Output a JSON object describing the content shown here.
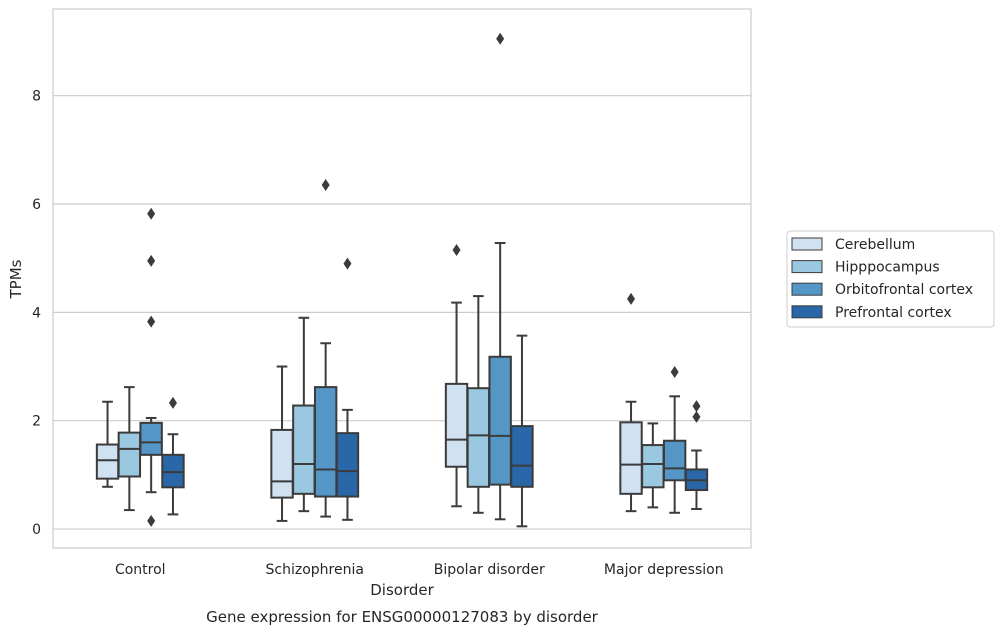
{
  "chart_data": {
    "type": "box",
    "title": "",
    "caption": "Gene expression for ENSG00000127083 by disorder",
    "xlabel": "Disorder",
    "ylabel": "TPMs",
    "ylim": [
      -0.35,
      9.6
    ],
    "yticks": [
      0,
      2,
      4,
      6,
      8
    ],
    "grid": "horizontal",
    "legend_position": "right",
    "categories": [
      "Control",
      "Schizophrenia",
      "Bipolar disorder",
      "Major depression"
    ],
    "series": [
      {
        "name": "Cerebellum",
        "color": "#d0e1f2",
        "boxes": [
          {
            "whisker_low": 0.78,
            "q1": 0.93,
            "median": 1.27,
            "q3": 1.56,
            "whisker_high": 2.35,
            "outliers": []
          },
          {
            "whisker_low": 0.15,
            "q1": 0.58,
            "median": 0.88,
            "q3": 1.83,
            "whisker_high": 3.0,
            "outliers": []
          },
          {
            "whisker_low": 0.42,
            "q1": 1.15,
            "median": 1.65,
            "q3": 2.68,
            "whisker_high": 4.18,
            "outliers": [
              5.15
            ]
          },
          {
            "whisker_low": 0.33,
            "q1": 0.65,
            "median": 1.19,
            "q3": 1.97,
            "whisker_high": 2.35,
            "outliers": [
              4.25
            ]
          }
        ]
      },
      {
        "name": "Hipppocampus",
        "color": "#9ac8e0",
        "boxes": [
          {
            "whisker_low": 0.35,
            "q1": 0.97,
            "median": 1.48,
            "q3": 1.78,
            "whisker_high": 2.62,
            "outliers": []
          },
          {
            "whisker_low": 0.33,
            "q1": 0.65,
            "median": 1.2,
            "q3": 2.28,
            "whisker_high": 3.9,
            "outliers": []
          },
          {
            "whisker_low": 0.3,
            "q1": 0.78,
            "median": 1.73,
            "q3": 2.6,
            "whisker_high": 4.3,
            "outliers": []
          },
          {
            "whisker_low": 0.4,
            "q1": 0.77,
            "median": 1.2,
            "q3": 1.55,
            "whisker_high": 1.95,
            "outliers": []
          }
        ]
      },
      {
        "name": "Orbitofrontal cortex",
        "color": "#5497c7",
        "boxes": [
          {
            "whisker_low": 0.68,
            "q1": 1.37,
            "median": 1.6,
            "q3": 1.96,
            "whisker_high": 2.05,
            "outliers": [
              5.82,
              4.95,
              3.83,
              0.15
            ]
          },
          {
            "whisker_low": 0.23,
            "q1": 0.6,
            "median": 1.1,
            "q3": 2.62,
            "whisker_high": 3.43,
            "outliers": [
              6.35
            ]
          },
          {
            "whisker_low": 0.18,
            "q1": 0.82,
            "median": 1.72,
            "q3": 3.18,
            "whisker_high": 5.28,
            "outliers": [
              9.05
            ]
          },
          {
            "whisker_low": 0.3,
            "q1": 0.9,
            "median": 1.12,
            "q3": 1.63,
            "whisker_high": 2.45,
            "outliers": [
              2.9
            ]
          }
        ]
      },
      {
        "name": "Prefrontal cortex",
        "color": "#2a67a9",
        "boxes": [
          {
            "whisker_low": 0.27,
            "q1": 0.77,
            "median": 1.05,
            "q3": 1.37,
            "whisker_high": 1.75,
            "outliers": [
              2.33
            ]
          },
          {
            "whisker_low": 0.17,
            "q1": 0.6,
            "median": 1.07,
            "q3": 1.77,
            "whisker_high": 2.2,
            "outliers": [
              4.9
            ]
          },
          {
            "whisker_low": 0.05,
            "q1": 0.78,
            "median": 1.17,
            "q3": 1.9,
            "whisker_high": 3.57,
            "outliers": []
          },
          {
            "whisker_low": 0.37,
            "q1": 0.72,
            "median": 0.9,
            "q3": 1.1,
            "whisker_high": 1.45,
            "outliers": [
              2.27,
              2.07
            ]
          }
        ]
      }
    ]
  }
}
